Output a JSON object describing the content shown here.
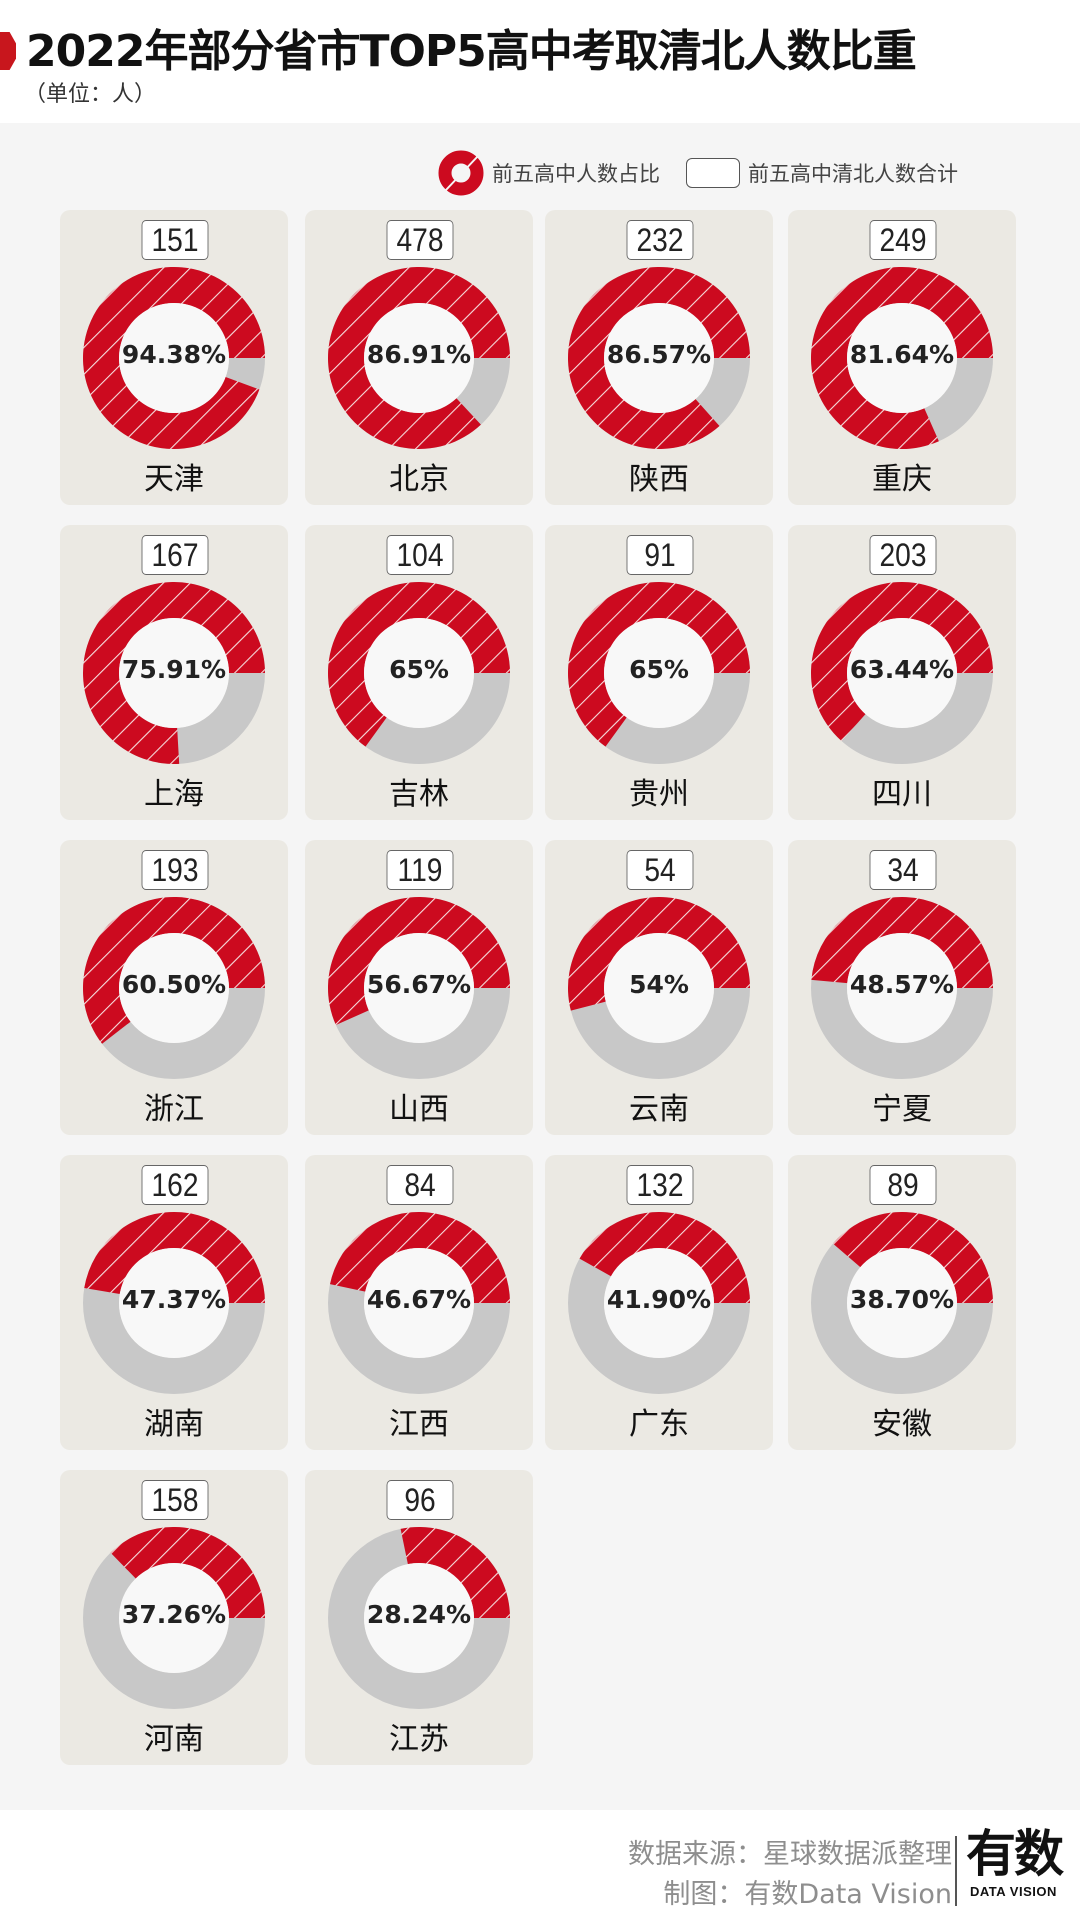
{
  "header": {
    "title": "2022年部分省市TOP5高中考取清北人数比重",
    "subtitle": "（单位：人）"
  },
  "legend": {
    "share_label": "前五高中人数占比",
    "total_label": "前五高中清北人数合计"
  },
  "colors": {
    "accent_red": "#cc0a1f",
    "remainder_gray": "#c8c8c8",
    "card_bg": "#ebe9e3",
    "panel_bg": "#f5f5f5"
  },
  "cards": [
    {
      "name": "天津",
      "total": "151",
      "pct": "94.38%",
      "value": 94.38
    },
    {
      "name": "北京",
      "total": "478",
      "pct": "86.91%",
      "value": 86.91
    },
    {
      "name": "陕西",
      "total": "232",
      "pct": "86.57%",
      "value": 86.57
    },
    {
      "name": "重庆",
      "total": "249",
      "pct": "81.64%",
      "value": 81.64
    },
    {
      "name": "上海",
      "total": "167",
      "pct": "75.91%",
      "value": 75.91
    },
    {
      "name": "吉林",
      "total": "104",
      "pct": "65%",
      "value": 65
    },
    {
      "name": "贵州",
      "total": "91",
      "pct": "65%",
      "value": 65
    },
    {
      "name": "四川",
      "total": "203",
      "pct": "63.44%",
      "value": 63.44
    },
    {
      "name": "浙江",
      "total": "193",
      "pct": "60.50%",
      "value": 60.5
    },
    {
      "name": "山西",
      "total": "119",
      "pct": "56.67%",
      "value": 56.67
    },
    {
      "name": "云南",
      "total": "54",
      "pct": "54%",
      "value": 54
    },
    {
      "name": "宁夏",
      "total": "34",
      "pct": "48.57%",
      "value": 48.57
    },
    {
      "name": "湖南",
      "total": "162",
      "pct": "47.37%",
      "value": 47.37
    },
    {
      "name": "江西",
      "total": "84",
      "pct": "46.67%",
      "value": 46.67
    },
    {
      "name": "广东",
      "total": "132",
      "pct": "41.90%",
      "value": 41.9
    },
    {
      "name": "安徽",
      "total": "89",
      "pct": "38.70%",
      "value": 38.7
    },
    {
      "name": "河南",
      "total": "158",
      "pct": "37.26%",
      "value": 37.26
    },
    {
      "name": "江苏",
      "total": "96",
      "pct": "28.24%",
      "value": 28.24
    }
  ],
  "footer": {
    "source": "数据来源：星球数据派整理",
    "credit": "制图：有数Data Vision",
    "logo_main": "有数",
    "logo_sub": "DATA VISION"
  },
  "chart_data": {
    "type": "pie",
    "title": "2022年部分省市TOP5高中考取清北人数比重",
    "subtitle": "（单位：人）",
    "legend": [
      "前五高中人数占比",
      "前五高中清北人数合计"
    ],
    "categories": [
      "天津",
      "北京",
      "陕西",
      "重庆",
      "上海",
      "吉林",
      "贵州",
      "四川",
      "浙江",
      "山西",
      "云南",
      "宁夏",
      "湖南",
      "江西",
      "广东",
      "安徽",
      "河南",
      "江苏"
    ],
    "series": [
      {
        "name": "前五高中人数占比 (%)",
        "values": [
          94.38,
          86.91,
          86.57,
          81.64,
          75.91,
          65,
          65,
          63.44,
          60.5,
          56.67,
          54,
          48.57,
          47.37,
          46.67,
          41.9,
          38.7,
          37.26,
          28.24
        ]
      },
      {
        "name": "前五高中清北人数合计",
        "values": [
          151,
          478,
          232,
          249,
          167,
          104,
          91,
          203,
          193,
          119,
          54,
          34,
          162,
          84,
          132,
          89,
          158,
          96
        ]
      }
    ],
    "layout": "small-multiples donut grid, 4 columns × 5 rows, legend top-right"
  }
}
